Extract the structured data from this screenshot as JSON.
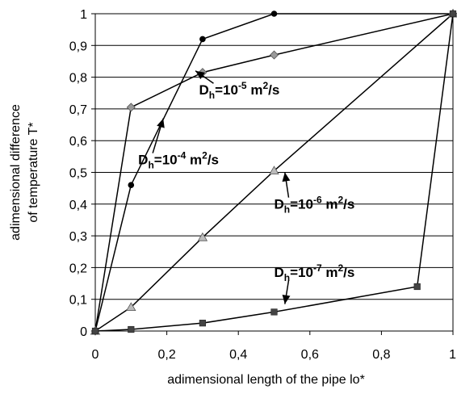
{
  "chart_data": {
    "type": "line",
    "xlabel": "adimensional length of the pipe   lo*",
    "ylabel_line1": "adimensional difference",
    "ylabel_line2": "of temperature   T*",
    "xlim": [
      0,
      1
    ],
    "ylim": [
      0,
      1
    ],
    "x_ticks": [
      "0",
      "0,2",
      "0,4",
      "0,6",
      "0,8",
      "1"
    ],
    "y_ticks": [
      "0",
      "0,1",
      "0,2",
      "0,3",
      "0,4",
      "0,5",
      "0,6",
      "0,7",
      "0,8",
      "0,9",
      "1"
    ],
    "grid": "horizontal",
    "series": [
      {
        "marker": "circle",
        "color": "#000000",
        "x": [
          0,
          0.1,
          0.3,
          0.5,
          1
        ],
        "y": [
          0,
          0.46,
          0.92,
          1,
          1
        ]
      },
      {
        "marker": "diamond",
        "color": "#999999",
        "x": [
          0,
          0.1,
          0.3,
          0.5,
          1
        ],
        "y": [
          0,
          0.705,
          0.815,
          0.87,
          1
        ]
      },
      {
        "marker": "triangle",
        "color": "#bbbbbb",
        "x": [
          0,
          0.1,
          0.3,
          0.5,
          1
        ],
        "y": [
          0,
          0.075,
          0.295,
          0.505,
          1
        ]
      },
      {
        "marker": "square",
        "color": "#444444",
        "x": [
          0,
          0.1,
          0.3,
          0.5,
          0.9,
          1
        ],
        "y": [
          0,
          0.005,
          0.025,
          0.06,
          0.14,
          1
        ]
      }
    ],
    "annotations": [
      {
        "base": "D",
        "sub": "h",
        "mid": "=10",
        "exp": "-5",
        "unit": " m",
        "unit_exp": "2",
        "tail": "/s",
        "text_x": 0.29,
        "text_y": 0.745,
        "arrow_x": 0.28,
        "arrow_y": 0.82
      },
      {
        "base": "D",
        "sub": "h",
        "mid": "=10",
        "exp": "-4",
        "unit": " m",
        "unit_exp": "2",
        "tail": "/s",
        "text_x": 0.12,
        "text_y": 0.525,
        "arrow_x": 0.19,
        "arrow_y": 0.67
      },
      {
        "base": "D",
        "sub": "h",
        "mid": "=10",
        "exp": "-6",
        "unit": " m",
        "unit_exp": "2",
        "tail": "/s",
        "text_x": 0.5,
        "text_y": 0.385,
        "arrow_x": 0.53,
        "arrow_y": 0.5
      },
      {
        "base": "D",
        "sub": "h",
        "mid": "=10",
        "exp": "-7",
        "unit": " m",
        "unit_exp": "2",
        "tail": "/s",
        "text_x": 0.5,
        "text_y": 0.17,
        "arrow_x": 0.53,
        "arrow_y": 0.085
      }
    ]
  }
}
